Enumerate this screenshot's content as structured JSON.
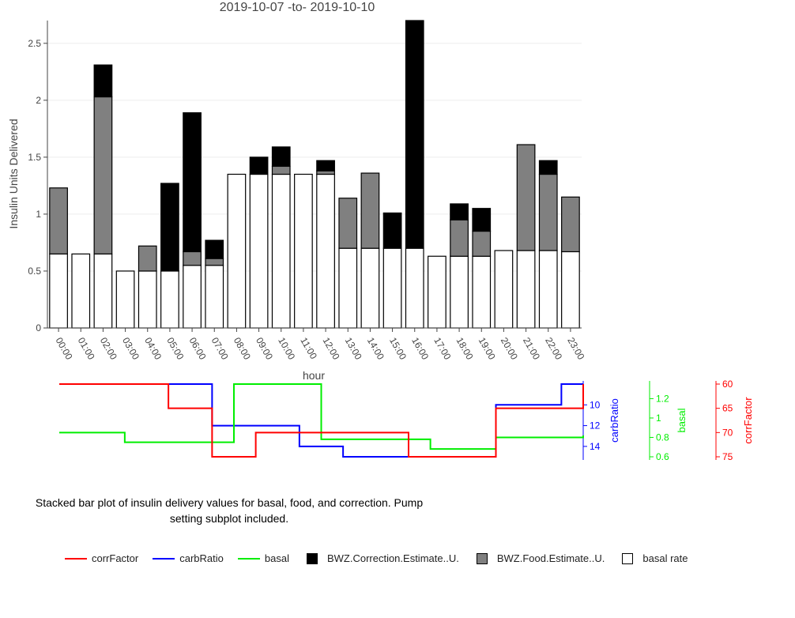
{
  "chart_data": [
    {
      "type": "bar",
      "stacked": true,
      "title": "2019-10-07 -to- 2019-10-10",
      "xlabel": "hour",
      "ylabel": "Insulin Units Delivered",
      "ylim": [
        0,
        2.7
      ],
      "yticks": [
        0,
        0.5,
        1,
        1.5,
        2,
        2.5
      ],
      "ytick_labels": [
        "0",
        "0.5",
        "1",
        "1.5",
        "2",
        "2.5"
      ],
      "grid": true,
      "categories": [
        "00:00",
        "01:00",
        "02:00",
        "03:00",
        "04:00",
        "05:00",
        "06:00",
        "07:00",
        "08:00",
        "09:00",
        "10:00",
        "11:00",
        "12:00",
        "13:00",
        "14:00",
        "15:00",
        "16:00",
        "17:00",
        "18:00",
        "19:00",
        "20:00",
        "21:00",
        "22:00",
        "23:00"
      ],
      "series": [
        {
          "name": "basal rate",
          "color": "#ffffff",
          "values": [
            0.65,
            0.65,
            0.65,
            0.5,
            0.5,
            0.5,
            0.55,
            0.55,
            1.35,
            1.35,
            1.35,
            1.35,
            1.35,
            0.7,
            0.7,
            0.7,
            0.7,
            0.63,
            0.63,
            0.63,
            0.68,
            0.68,
            0.68,
            0.67
          ]
        },
        {
          "name": "BWZ.Food.Estimate..U.",
          "color": "#808080",
          "values": [
            0.58,
            0,
            1.38,
            0,
            0.22,
            0,
            0.12,
            0.06,
            0,
            0,
            0.07,
            0,
            0.03,
            0.44,
            0.66,
            0,
            0,
            0,
            0.32,
            0.22,
            0,
            0.93,
            0.67,
            0.48
          ]
        },
        {
          "name": "BWZ.Correction.Estimate..U.",
          "color": "#000000",
          "values": [
            0,
            0,
            0.28,
            0,
            0,
            0.77,
            1.22,
            0.16,
            0,
            0.15,
            0.17,
            0,
            0.09,
            0,
            0,
            0.31,
            2.0,
            0,
            0.14,
            0.2,
            0,
            0,
            0.12,
            0
          ]
        }
      ]
    },
    {
      "type": "line",
      "step": true,
      "xlim": [
        0,
        24
      ],
      "series": [
        {
          "name": "corrFactor",
          "color": "#ff0000",
          "axis_label": "corrFactor",
          "axis_range": [
            60,
            75
          ],
          "axis_reversed": true,
          "ticks": [
            60,
            65,
            70,
            75
          ],
          "x": [
            0,
            5,
            7,
            9,
            16,
            20,
            23,
            24
          ],
          "y": [
            60,
            65,
            75,
            70,
            75,
            65,
            65,
            60
          ]
        },
        {
          "name": "carbRatio",
          "color": "#0000ff",
          "axis_label": "carbRatio",
          "axis_range": [
            8,
            15
          ],
          "axis_reversed": true,
          "ticks": [
            10,
            12,
            14
          ],
          "x": [
            0,
            7,
            11,
            13,
            20,
            23,
            24
          ],
          "y": [
            8,
            12,
            14,
            15,
            10,
            8,
            8
          ]
        },
        {
          "name": "basal",
          "color": "#00ee00",
          "axis_label": "basal",
          "axis_range": [
            0.6,
            1.35
          ],
          "axis_reversed": false,
          "ticks": [
            0.6,
            0.8,
            1,
            1.2
          ],
          "tick_labels": [
            "0.6",
            "0.8",
            "1",
            "1.2"
          ],
          "x": [
            0,
            3,
            8,
            12,
            17,
            20,
            23,
            24
          ],
          "y": [
            0.85,
            0.75,
            1.35,
            0.78,
            0.68,
            0.8,
            0.8,
            0.82
          ]
        }
      ]
    }
  ],
  "caption": "Stacked bar plot of insulin delivery values for basal, food, and correction. Pump setting subplot included.",
  "legend": [
    {
      "label": "corrFactor",
      "kind": "line",
      "color": "#ff0000"
    },
    {
      "label": "carbRatio",
      "kind": "line",
      "color": "#0000ff"
    },
    {
      "label": "basal",
      "kind": "line",
      "color": "#00ee00"
    },
    {
      "label": "BWZ.Correction.Estimate..U.",
      "kind": "box",
      "color": "#000000"
    },
    {
      "label": "BWZ.Food.Estimate..U.",
      "kind": "box",
      "color": "#808080"
    },
    {
      "label": "basal rate",
      "kind": "box",
      "color": "#ffffff"
    }
  ]
}
